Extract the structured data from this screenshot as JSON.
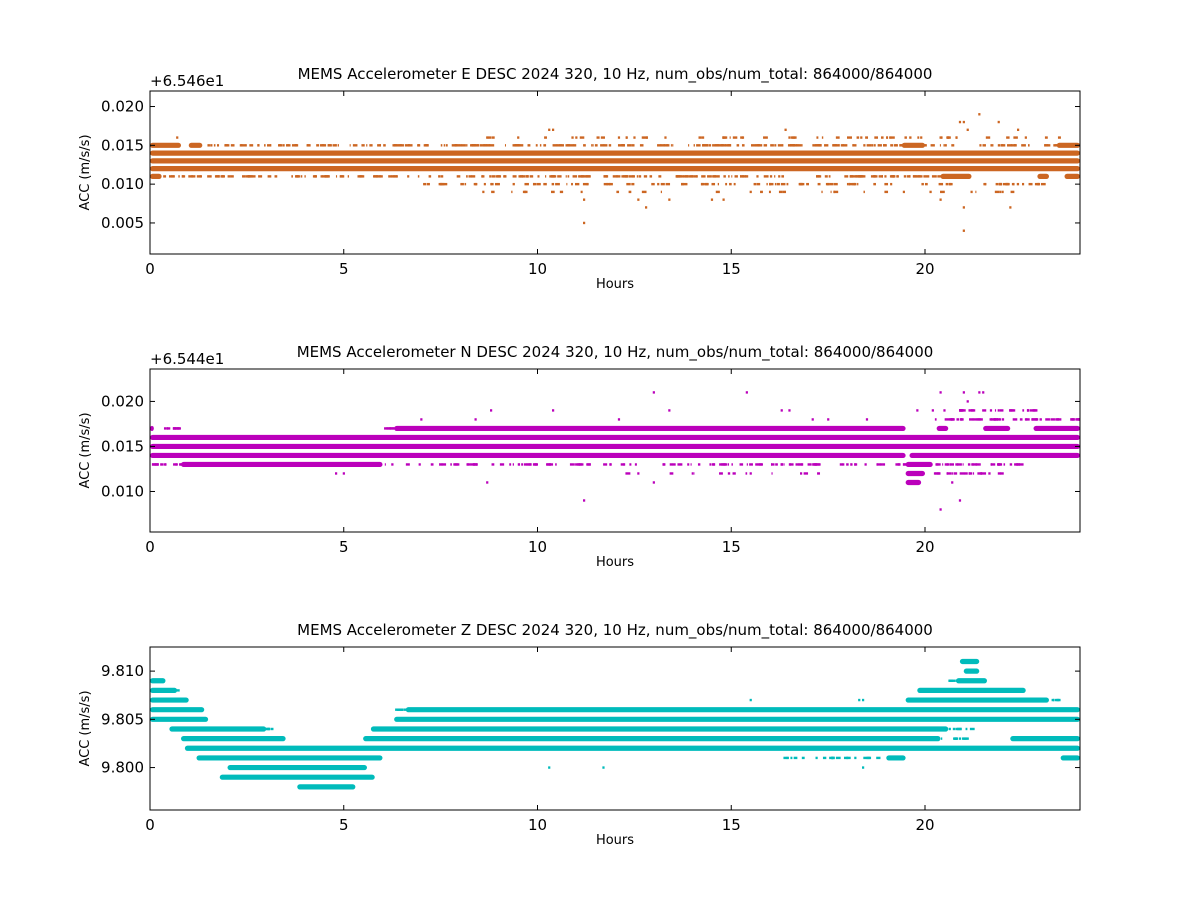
{
  "chart_data": [
    {
      "type": "scatter",
      "title": "MEMS Accelerometer E DESC 2024 320, 10 Hz, num_obs/num_total: 864000/864000",
      "xlabel": "Hours",
      "ylabel": "ACC (m/s/s)",
      "offset_label": "+6.546e1",
      "color": "#cc6622",
      "xlim": [
        0,
        24
      ],
      "ylim": [
        0.001,
        0.022
      ],
      "xticks": [
        "0",
        "5",
        "10",
        "15",
        "20"
      ],
      "yticks": [
        "0.005",
        "0.010",
        "0.015",
        "0.020"
      ],
      "ytick_values": [
        0.005,
        0.01,
        0.015,
        0.02
      ],
      "series": [
        {
          "y": 0.015,
          "segments": [
            [
              0,
              0.8
            ],
            [
              1.0,
              1.35
            ],
            [
              19.4,
              20.0
            ],
            [
              23.4,
              24
            ]
          ]
        },
        {
          "y": 0.014,
          "segments": [
            [
              0,
              24
            ]
          ]
        },
        {
          "y": 0.013,
          "segments": [
            [
              0,
              24
            ]
          ]
        },
        {
          "y": 0.012,
          "segments": [
            [
              0,
              24
            ]
          ]
        },
        {
          "y": 0.011,
          "segments": [
            [
              0,
              0.3
            ],
            [
              20.4,
              21.2
            ],
            [
              22.9,
              23.2
            ],
            [
              23.6,
              24
            ]
          ]
        }
      ],
      "scatter_points": [
        {
          "x": 0.7,
          "y": 0.016
        },
        {
          "x": 8.7,
          "y": 0.016
        },
        {
          "x": 9.5,
          "y": 0.016
        },
        {
          "x": 10.3,
          "y": 0.017
        },
        {
          "x": 10.4,
          "y": 0.017
        },
        {
          "x": 11.0,
          "y": 0.016
        },
        {
          "x": 11.2,
          "y": 0.005
        },
        {
          "x": 11.2,
          "y": 0.008
        },
        {
          "x": 12.1,
          "y": 0.016
        },
        {
          "x": 12.3,
          "y": 0.016
        },
        {
          "x": 12.5,
          "y": 0.016
        },
        {
          "x": 12.6,
          "y": 0.008
        },
        {
          "x": 12.8,
          "y": 0.007
        },
        {
          "x": 13.3,
          "y": 0.016
        },
        {
          "x": 13.4,
          "y": 0.008
        },
        {
          "x": 15.3,
          "y": 0.016
        },
        {
          "x": 16.4,
          "y": 0.017
        },
        {
          "x": 16.5,
          "y": 0.016
        },
        {
          "x": 19.9,
          "y": 0.016
        },
        {
          "x": 20.4,
          "y": 0.016
        },
        {
          "x": 20.6,
          "y": 0.016
        },
        {
          "x": 20.4,
          "y": 0.008
        },
        {
          "x": 20.9,
          "y": 0.018
        },
        {
          "x": 21.0,
          "y": 0.018
        },
        {
          "x": 21.1,
          "y": 0.017
        },
        {
          "x": 21.4,
          "y": 0.019
        },
        {
          "x": 21.0,
          "y": 0.004
        },
        {
          "x": 21.0,
          "y": 0.007
        },
        {
          "x": 21.2,
          "y": 0.009
        },
        {
          "x": 21.9,
          "y": 0.018
        },
        {
          "x": 22.2,
          "y": 0.007
        },
        {
          "x": 22.6,
          "y": 0.016
        },
        {
          "x": 22.4,
          "y": 0.017
        },
        {
          "x": 8.6,
          "y": 0.009
        },
        {
          "x": 9.0,
          "y": 0.01
        },
        {
          "x": 14.5,
          "y": 0.008
        },
        {
          "x": 14.8,
          "y": 0.008
        },
        {
          "x": 15.5,
          "y": 0.009
        },
        {
          "x": 17.5,
          "y": 0.01
        },
        {
          "x": 16.0,
          "y": 0.01
        },
        {
          "x": 18.2,
          "y": 0.01
        },
        {
          "x": 19.1,
          "y": 0.016
        },
        {
          "x": 22.0,
          "y": 0.009
        }
      ],
      "sparse_bands": [
        {
          "y": 0.016,
          "from": 8.5,
          "to": 23.5,
          "density": 0.08
        },
        {
          "y": 0.015,
          "from": 1.35,
          "to": 24,
          "density": 0.25
        },
        {
          "y": 0.011,
          "from": 0.3,
          "to": 20.4,
          "density": 0.25
        },
        {
          "y": 0.01,
          "from": 7.0,
          "to": 23.5,
          "density": 0.15
        },
        {
          "y": 0.009,
          "from": 8.5,
          "to": 23.0,
          "density": 0.05
        }
      ]
    },
    {
      "type": "scatter",
      "title": "MEMS Accelerometer N DESC 2024 320, 10 Hz, num_obs/num_total: 864000/864000",
      "xlabel": "Hours",
      "ylabel": "ACC (m/s/s)",
      "offset_label": "+6.544e1",
      "color": "#bb00bb",
      "xlim": [
        0,
        24
      ],
      "ylim": [
        0.0055,
        0.0236
      ],
      "xticks": [
        "0",
        "5",
        "10",
        "15",
        "20"
      ],
      "yticks": [
        "0.010",
        "0.015",
        "0.020"
      ],
      "ytick_values": [
        0.01,
        0.015,
        0.02
      ],
      "series": [
        {
          "y": 0.017,
          "segments": [
            [
              0,
              0.1
            ],
            [
              6.3,
              19.5
            ],
            [
              20.3,
              20.6
            ],
            [
              21.5,
              22.2
            ],
            [
              22.8,
              24
            ]
          ]
        },
        {
          "y": 0.016,
          "segments": [
            [
              0,
              24
            ]
          ]
        },
        {
          "y": 0.015,
          "segments": [
            [
              0,
              24
            ]
          ]
        },
        {
          "y": 0.014,
          "segments": [
            [
              0,
              19.5
            ],
            [
              19.6,
              24
            ]
          ]
        },
        {
          "y": 0.013,
          "segments": [
            [
              0.8,
              6.0
            ],
            [
              19.5,
              20.2
            ]
          ]
        },
        {
          "y": 0.012,
          "segments": [
            [
              19.5,
              20.0
            ]
          ]
        },
        {
          "y": 0.011,
          "segments": [
            [
              19.5,
              19.9
            ]
          ]
        }
      ],
      "scatter_points": [
        {
          "x": 7.0,
          "y": 0.018
        },
        {
          "x": 8.4,
          "y": 0.018
        },
        {
          "x": 8.7,
          "y": 0.011
        },
        {
          "x": 8.8,
          "y": 0.019
        },
        {
          "x": 10.4,
          "y": 0.019
        },
        {
          "x": 11.2,
          "y": 0.009
        },
        {
          "x": 12.1,
          "y": 0.018
        },
        {
          "x": 12.6,
          "y": 0.012
        },
        {
          "x": 13.0,
          "y": 0.021
        },
        {
          "x": 13.0,
          "y": 0.011
        },
        {
          "x": 13.4,
          "y": 0.019
        },
        {
          "x": 15.4,
          "y": 0.021
        },
        {
          "x": 15.5,
          "y": 0.012
        },
        {
          "x": 16.3,
          "y": 0.019
        },
        {
          "x": 16.5,
          "y": 0.019
        },
        {
          "x": 17.1,
          "y": 0.018
        },
        {
          "x": 19.8,
          "y": 0.019
        },
        {
          "x": 20.2,
          "y": 0.019
        },
        {
          "x": 20.4,
          "y": 0.021
        },
        {
          "x": 20.4,
          "y": 0.008
        },
        {
          "x": 20.5,
          "y": 0.019
        },
        {
          "x": 20.7,
          "y": 0.011
        },
        {
          "x": 20.9,
          "y": 0.009
        },
        {
          "x": 21.0,
          "y": 0.021
        },
        {
          "x": 21.1,
          "y": 0.02
        },
        {
          "x": 21.4,
          "y": 0.021
        },
        {
          "x": 21.5,
          "y": 0.021
        },
        {
          "x": 21.7,
          "y": 0.019
        },
        {
          "x": 5.0,
          "y": 0.012
        },
        {
          "x": 4.8,
          "y": 0.012
        },
        {
          "x": 22.2,
          "y": 0.019
        },
        {
          "x": 16.8,
          "y": 0.012
        },
        {
          "x": 18.1,
          "y": 0.013
        },
        {
          "x": 17.5,
          "y": 0.018
        },
        {
          "x": 18.5,
          "y": 0.018
        }
      ],
      "sparse_bands": [
        {
          "y": 0.019,
          "from": 20.8,
          "to": 23.0,
          "density": 0.3
        },
        {
          "y": 0.018,
          "from": 20.2,
          "to": 24,
          "density": 0.35
        },
        {
          "y": 0.017,
          "from": 0.1,
          "to": 0.8,
          "density": 0.4
        },
        {
          "y": 0.017,
          "from": 6.0,
          "to": 6.3,
          "density": 0.4
        },
        {
          "y": 0.013,
          "from": 6.0,
          "to": 19.5,
          "density": 0.2
        },
        {
          "y": 0.013,
          "from": 0,
          "to": 0.8,
          "density": 0.4
        },
        {
          "y": 0.013,
          "from": 20.2,
          "to": 22.5,
          "density": 0.3
        },
        {
          "y": 0.012,
          "from": 20.0,
          "to": 22.0,
          "density": 0.25
        },
        {
          "y": 0.012,
          "from": 12.0,
          "to": 17.5,
          "density": 0.05
        }
      ]
    },
    {
      "type": "scatter",
      "title": "MEMS Accelerometer Z DESC 2024 320, 10 Hz, num_obs/num_total: 864000/864000",
      "xlabel": "Hours",
      "ylabel": "ACC (m/s/s)",
      "offset_label": "",
      "color": "#00bbbb",
      "xlim": [
        0,
        24
      ],
      "ylim": [
        9.7956,
        9.8125
      ],
      "xticks": [
        "0",
        "5",
        "10",
        "15",
        "20"
      ],
      "yticks": [
        "9.800",
        "9.805",
        "9.810"
      ],
      "ytick_values": [
        9.8,
        9.805,
        9.81
      ],
      "series": [
        {
          "y": 9.811,
          "segments": [
            [
              20.9,
              21.4
            ]
          ]
        },
        {
          "y": 9.81,
          "segments": [
            [
              21.0,
              21.4
            ]
          ]
        },
        {
          "y": 9.809,
          "segments": [
            [
              0,
              0.4
            ],
            [
              20.8,
              21.6
            ]
          ]
        },
        {
          "y": 9.808,
          "segments": [
            [
              0,
              0.7
            ],
            [
              19.8,
              22.6
            ]
          ]
        },
        {
          "y": 9.807,
          "segments": [
            [
              0,
              1.0
            ],
            [
              19.5,
              23.2
            ]
          ]
        },
        {
          "y": 9.806,
          "segments": [
            [
              0,
              1.4
            ],
            [
              6.6,
              24
            ]
          ]
        },
        {
          "y": 9.805,
          "segments": [
            [
              0,
              1.5
            ],
            [
              6.3,
              24
            ]
          ]
        },
        {
          "y": 9.804,
          "segments": [
            [
              0.5,
              3.0
            ],
            [
              5.7,
              20.6
            ]
          ]
        },
        {
          "y": 9.803,
          "segments": [
            [
              0.8,
              3.5
            ],
            [
              5.5,
              20.4
            ],
            [
              22.2,
              24
            ]
          ]
        },
        {
          "y": 9.802,
          "segments": [
            [
              0.9,
              24
            ]
          ]
        },
        {
          "y": 9.801,
          "segments": [
            [
              1.2,
              6.0
            ],
            [
              19.0,
              19.5
            ],
            [
              23.5,
              24
            ]
          ]
        },
        {
          "y": 9.8,
          "segments": [
            [
              2.0,
              5.6
            ]
          ]
        },
        {
          "y": 9.799,
          "segments": [
            [
              1.8,
              5.8
            ]
          ]
        },
        {
          "y": 9.798,
          "segments": [
            [
              3.8,
              5.3
            ]
          ]
        }
      ],
      "scatter_points": [
        {
          "x": 6.5,
          "y": 9.806
        },
        {
          "x": 11.7,
          "y": 9.806
        },
        {
          "x": 15.5,
          "y": 9.807
        },
        {
          "x": 18.3,
          "y": 9.807
        },
        {
          "x": 18.4,
          "y": 9.807
        },
        {
          "x": 10.3,
          "y": 9.8
        },
        {
          "x": 11.7,
          "y": 9.8
        },
        {
          "x": 18.4,
          "y": 9.8
        },
        {
          "x": 17.2,
          "y": 9.801
        },
        {
          "x": 18.2,
          "y": 9.801
        },
        {
          "x": 20.9,
          "y": 9.803
        },
        {
          "x": 21.1,
          "y": 9.803
        },
        {
          "x": 21.0,
          "y": 9.811
        },
        {
          "x": 21.3,
          "y": 9.811
        },
        {
          "x": 23.6,
          "y": 9.801
        },
        {
          "x": 3.0,
          "y": 9.804
        }
      ],
      "sparse_bands": [
        {
          "y": 9.808,
          "from": 0.6,
          "to": 0.7,
          "density": 0.6
        },
        {
          "y": 9.806,
          "from": 6.3,
          "to": 6.6,
          "density": 0.5
        },
        {
          "y": 9.804,
          "from": 3.0,
          "to": 3.2,
          "density": 0.5
        },
        {
          "y": 9.804,
          "from": 20.6,
          "to": 21.2,
          "density": 0.3
        },
        {
          "y": 9.803,
          "from": 20.4,
          "to": 21.0,
          "density": 0.3
        },
        {
          "y": 9.801,
          "from": 16.0,
          "to": 19.0,
          "density": 0.15
        },
        {
          "y": 9.799,
          "from": 1.8,
          "to": 2.2,
          "density": 0.4
        },
        {
          "y": 9.809,
          "from": 20.6,
          "to": 20.8,
          "density": 0.5
        },
        {
          "y": 9.807,
          "from": 23.2,
          "to": 23.4,
          "density": 0.5
        },
        {
          "y": 9.806,
          "from": 22.0,
          "to": 22.4,
          "density": 0.3
        }
      ]
    }
  ]
}
